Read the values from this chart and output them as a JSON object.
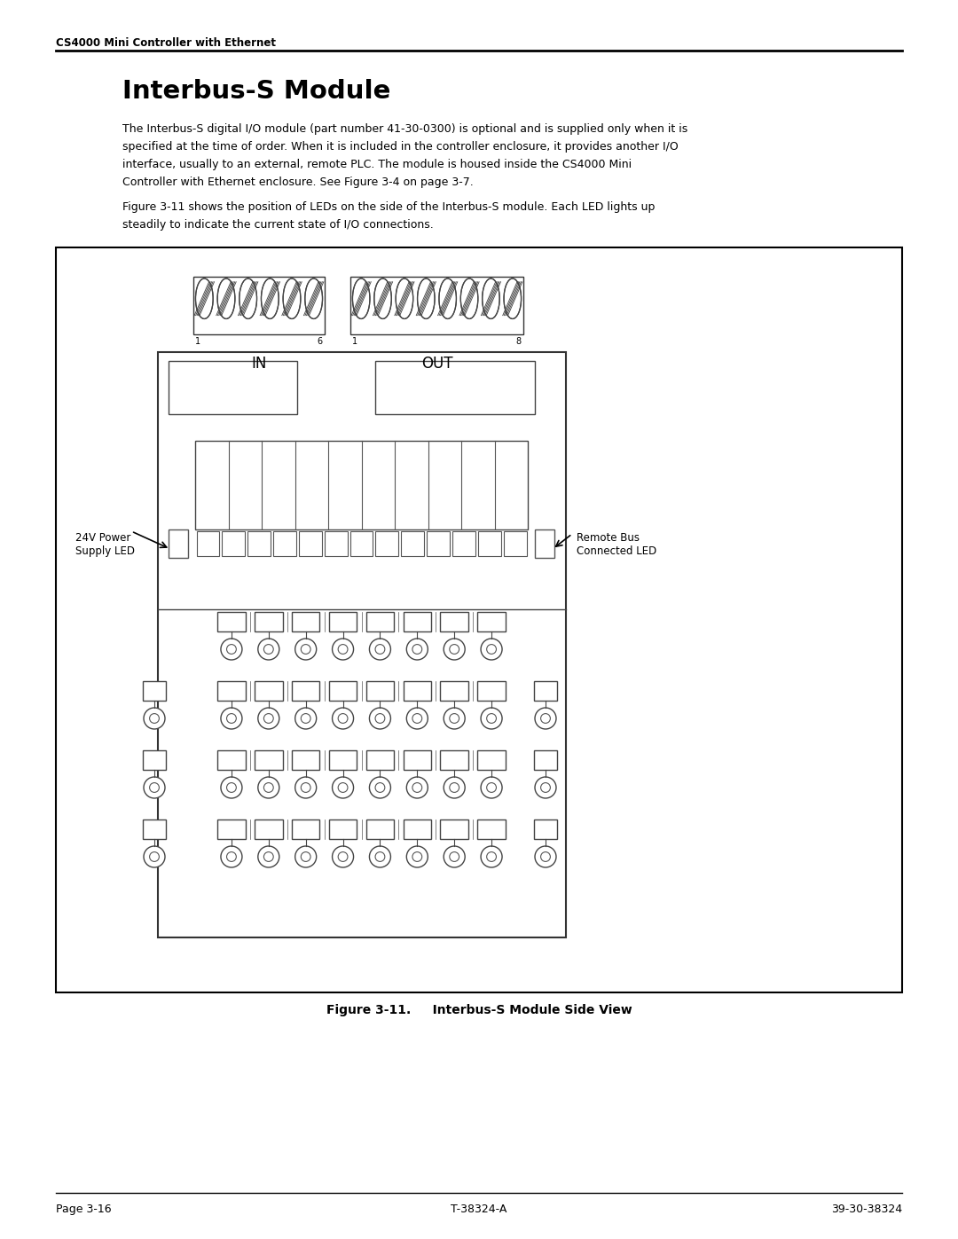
{
  "header_text": "CS4000 Mini Controller with Ethernet",
  "title": "Interbus-S Module",
  "para1": [
    "The Interbus-S digital I/O module (part number 41-30-0300) is optional and is supplied only when it is",
    "specified at the time of order. When it is included in the controller enclosure, it provides another I/O",
    "interface, usually to an external, remote PLC. The module is housed inside the CS4000 Mini",
    "Controller with Ethernet enclosure. See Figure 3-4 on page 3-7."
  ],
  "para2": [
    "Figure 3-11 shows the position of LEDs on the side of the Interbus-S module. Each LED lights up",
    "steadily to indicate the current state of I/O connections."
  ],
  "label_24v": "24V Power\nSupply LED",
  "label_remote": "Remote Bus\nConnected LED",
  "label_in": "IN",
  "label_out": "OUT",
  "label_in_1": "1",
  "label_in_6": "6",
  "label_out_1": "1",
  "label_out_8": "8",
  "figure_caption": "Figure 3-11.     Interbus-S Module Side View",
  "footer_left": "Page 3-16",
  "footer_center": "T-38324-A",
  "footer_right": "39-30-38324"
}
